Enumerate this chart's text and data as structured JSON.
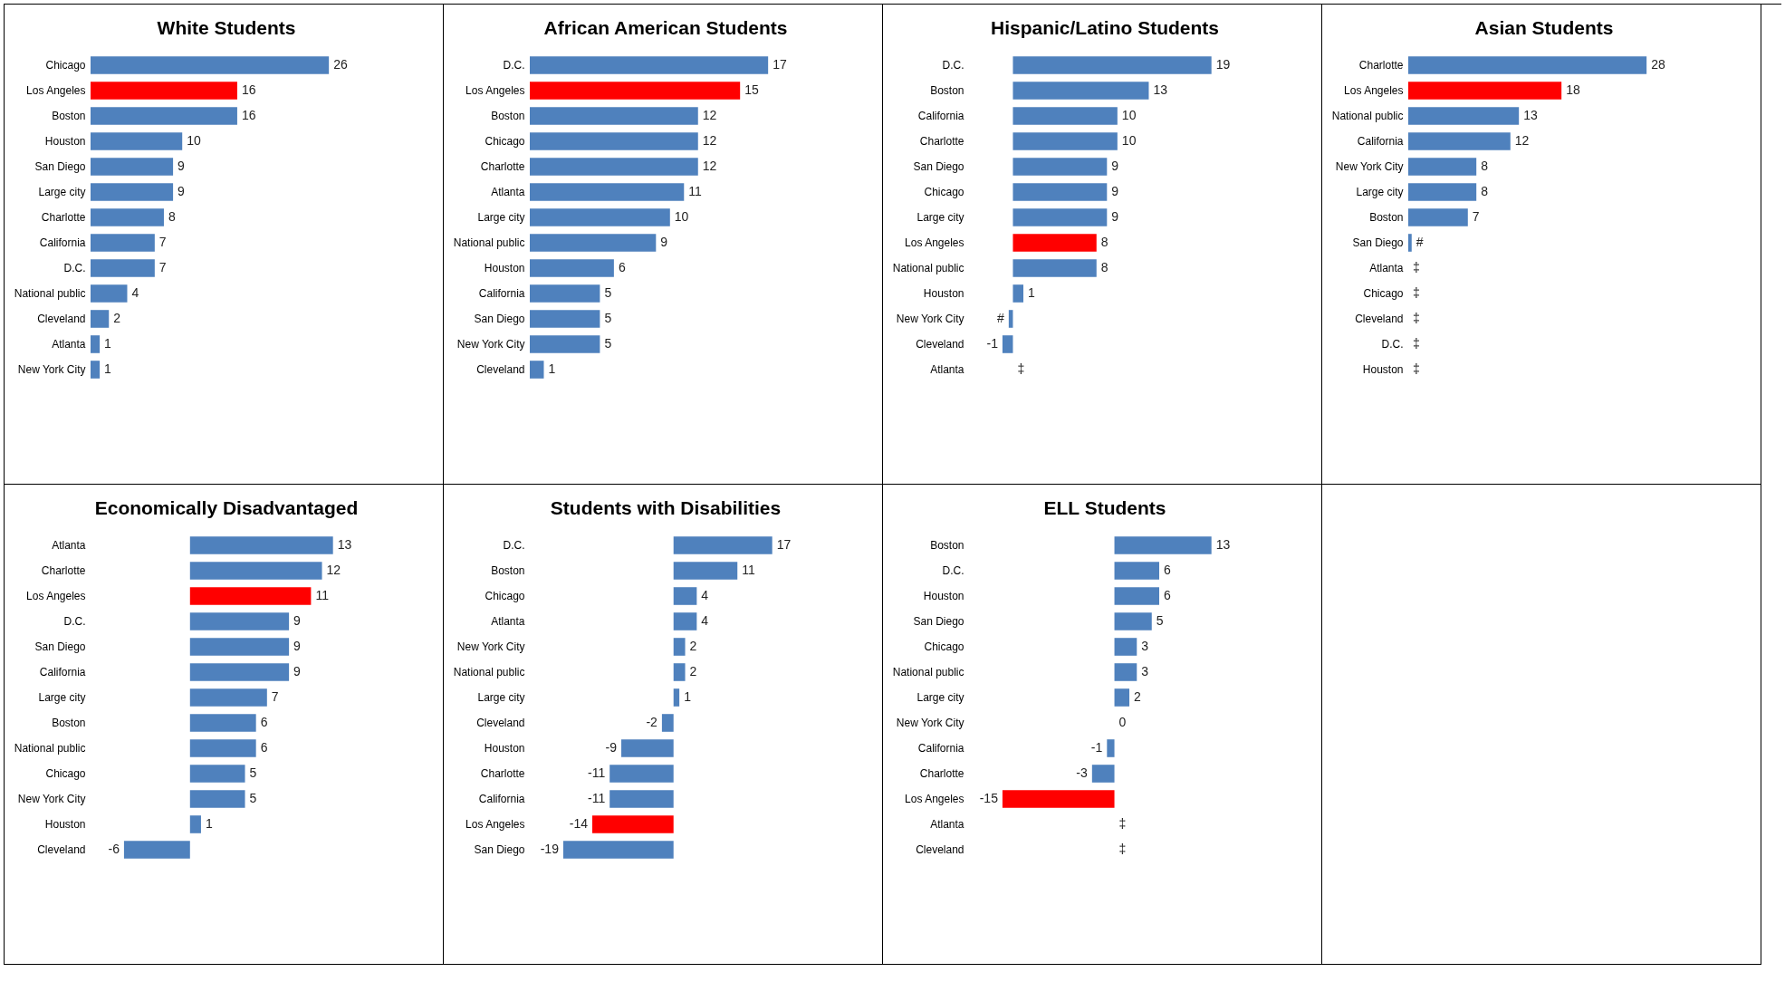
{
  "chart_data": [
    {
      "type": "bar",
      "orientation": "horizontal",
      "title": "White Students",
      "categories": [
        "Chicago",
        "Los Angeles",
        "Boston",
        "Houston",
        "San Diego",
        "Large city",
        "Charlotte",
        "California",
        "D.C.",
        "National public",
        "Cleveland",
        "Atlanta",
        "New York City"
      ],
      "values": [
        26,
        16,
        16,
        10,
        9,
        9,
        8,
        7,
        7,
        4,
        2,
        1,
        1
      ],
      "colors": [
        "#4f81bd",
        "#ff0000",
        "#4f81bd",
        "#4f81bd",
        "#4f81bd",
        "#4f81bd",
        "#4f81bd",
        "#4f81bd",
        "#4f81bd",
        "#4f81bd",
        "#4f81bd",
        "#4f81bd",
        "#4f81bd"
      ],
      "data_labels": true
    },
    {
      "type": "bar",
      "orientation": "horizontal",
      "title": "African American Students",
      "categories": [
        "D.C.",
        "Los Angeles",
        "Boston",
        "Chicago",
        "Charlotte",
        "Atlanta",
        "Large city",
        "National public",
        "Houston",
        "California",
        "San Diego",
        "New York City",
        "Cleveland"
      ],
      "values": [
        17,
        15,
        12,
        12,
        12,
        11,
        10,
        9,
        6,
        5,
        5,
        5,
        1
      ],
      "colors": [
        "#4f81bd",
        "#ff0000",
        "#4f81bd",
        "#4f81bd",
        "#4f81bd",
        "#4f81bd",
        "#4f81bd",
        "#4f81bd",
        "#4f81bd",
        "#4f81bd",
        "#4f81bd",
        "#4f81bd",
        "#4f81bd"
      ],
      "data_labels": true
    },
    {
      "type": "bar",
      "orientation": "horizontal",
      "title": "Hispanic/Latino Students",
      "categories": [
        "D.C.",
        "Boston",
        "California",
        "Charlotte",
        "San Diego",
        "Chicago",
        "Large city",
        "Los Angeles",
        "National public",
        "Houston",
        "New York City",
        "Cleveland",
        "Atlanta"
      ],
      "values": [
        19,
        13,
        10,
        10,
        9,
        9,
        9,
        8,
        8,
        1,
        -0.4,
        -1,
        null
      ],
      "value_labels": [
        "19",
        "13",
        "10",
        "10",
        "9",
        "9",
        "9",
        "8",
        "8",
        "1",
        "#",
        "-1",
        "‡"
      ],
      "colors": [
        "#4f81bd",
        "#4f81bd",
        "#4f81bd",
        "#4f81bd",
        "#4f81bd",
        "#4f81bd",
        "#4f81bd",
        "#ff0000",
        "#4f81bd",
        "#4f81bd",
        "#4f81bd",
        "#4f81bd",
        "#4f81bd"
      ]
    },
    {
      "type": "bar",
      "orientation": "horizontal",
      "title": "Asian Students",
      "categories": [
        "Charlotte",
        "Los Angeles",
        "National public",
        "California",
        "New York City",
        "Large city",
        "Boston",
        "San Diego",
        "Atlanta",
        "Chicago",
        "Cleveland",
        "D.C.",
        "Houston"
      ],
      "values": [
        28,
        18,
        13,
        12,
        8,
        8,
        7,
        0.4,
        null,
        null,
        null,
        null,
        null
      ],
      "value_labels": [
        "28",
        "18",
        "13",
        "12",
        "8",
        "8",
        "7",
        "#",
        "‡",
        "‡",
        "‡",
        "‡",
        "‡"
      ],
      "colors": [
        "#4f81bd",
        "#ff0000",
        "#4f81bd",
        "#4f81bd",
        "#4f81bd",
        "#4f81bd",
        "#4f81bd",
        "#4f81bd",
        "#4f81bd",
        "#4f81bd",
        "#4f81bd",
        "#4f81bd",
        "#4f81bd"
      ]
    },
    {
      "type": "bar",
      "orientation": "horizontal",
      "title": "Economically Disadvantaged",
      "categories": [
        "Atlanta",
        "Charlotte",
        "Los Angeles",
        "D.C.",
        "San Diego",
        "California",
        "Large city",
        "Boston",
        "National public",
        "Chicago",
        "New York City",
        "Houston",
        "Cleveland"
      ],
      "values": [
        13,
        12,
        11,
        9,
        9,
        9,
        7,
        6,
        6,
        5,
        5,
        1,
        -6
      ],
      "colors": [
        "#4f81bd",
        "#4f81bd",
        "#ff0000",
        "#4f81bd",
        "#4f81bd",
        "#4f81bd",
        "#4f81bd",
        "#4f81bd",
        "#4f81bd",
        "#4f81bd",
        "#4f81bd",
        "#4f81bd",
        "#4f81bd"
      ],
      "data_labels": true
    },
    {
      "type": "bar",
      "orientation": "horizontal",
      "title": "Students with Disabilities",
      "categories": [
        "D.C.",
        "Boston",
        "Chicago",
        "Atlanta",
        "New York City",
        "National public",
        "Large city",
        "Cleveland",
        "Houston",
        "Charlotte",
        "California",
        "Los Angeles",
        "San Diego"
      ],
      "values": [
        17,
        11,
        4,
        4,
        2,
        2,
        1,
        -2,
        -9,
        -11,
        -11,
        -14,
        -19
      ],
      "colors": [
        "#4f81bd",
        "#4f81bd",
        "#4f81bd",
        "#4f81bd",
        "#4f81bd",
        "#4f81bd",
        "#4f81bd",
        "#4f81bd",
        "#4f81bd",
        "#4f81bd",
        "#4f81bd",
        "#ff0000",
        "#4f81bd"
      ],
      "data_labels": true
    },
    {
      "type": "bar",
      "orientation": "horizontal",
      "title": "ELL Students",
      "categories": [
        "Boston",
        "D.C.",
        "Houston",
        "San Diego",
        "Chicago",
        "National public",
        "Large city",
        "New York City",
        "California",
        "Charlotte",
        "Los Angeles",
        "Atlanta",
        "Cleveland"
      ],
      "values": [
        13,
        6,
        6,
        5,
        3,
        3,
        2,
        0,
        -1,
        -3,
        -15,
        null,
        null
      ],
      "value_labels": [
        "13",
        "6",
        "6",
        "5",
        "3",
        "3",
        "2",
        "0",
        "-1",
        "-3",
        "-15",
        "‡",
        "‡"
      ],
      "colors": [
        "#4f81bd",
        "#4f81bd",
        "#4f81bd",
        "#4f81bd",
        "#4f81bd",
        "#4f81bd",
        "#4f81bd",
        "#4f81bd",
        "#4f81bd",
        "#4f81bd",
        "#ff0000",
        "#4f81bd",
        "#4f81bd"
      ]
    }
  ]
}
